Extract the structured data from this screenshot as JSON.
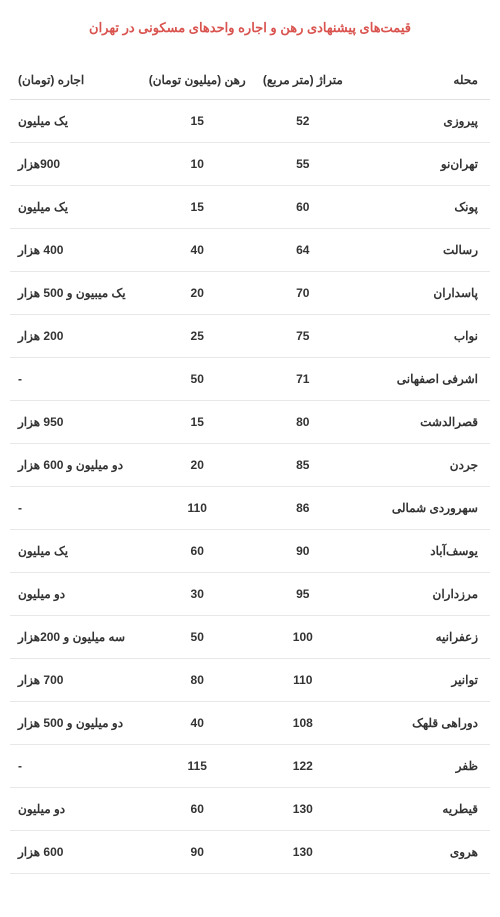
{
  "title": "قیمت‌های پیشنهادی رهن و اجاره واحدهای مسکونی در تهران",
  "columns": {
    "neighborhood": "محله",
    "area": "متراژ (متر مربع)",
    "deposit": "رهن (میلیون تومان)",
    "rent": "اجاره (تومان)"
  },
  "rows": [
    {
      "neighborhood": "پیروزی",
      "area": "52",
      "deposit": "15",
      "rent": "یک میلیون"
    },
    {
      "neighborhood": "تهران‌نو",
      "area": "55",
      "deposit": "10",
      "rent": "900هزار"
    },
    {
      "neighborhood": "پونک",
      "area": "60",
      "deposit": "15",
      "rent": "یک میلیون"
    },
    {
      "neighborhood": "رسالت",
      "area": "64",
      "deposit": "40",
      "rent": "400 هزار"
    },
    {
      "neighborhood": "پاسداران",
      "area": "70",
      "deposit": "20",
      "rent": "یک میبیون و 500 هزار"
    },
    {
      "neighborhood": "نواب",
      "area": "75",
      "deposit": "25",
      "rent": "200 هزار"
    },
    {
      "neighborhood": "اشرفی اصفهانی",
      "area": "71",
      "deposit": "50",
      "rent": "-"
    },
    {
      "neighborhood": "قصرالدشت",
      "area": "80",
      "deposit": "15",
      "rent": "950 هزار"
    },
    {
      "neighborhood": "جردن",
      "area": "85",
      "deposit": "20",
      "rent": "دو میلیون و 600 هزار"
    },
    {
      "neighborhood": "سهروردی شمالی",
      "area": "86",
      "deposit": "110",
      "rent": "-"
    },
    {
      "neighborhood": "یوسف‌آباد",
      "area": "90",
      "deposit": "60",
      "rent": "یک میلیون"
    },
    {
      "neighborhood": "مرزداران",
      "area": "95",
      "deposit": "30",
      "rent": "دو میلیون"
    },
    {
      "neighborhood": "زعفرانیه",
      "area": "100",
      "deposit": "50",
      "rent": "سه میلیون و 200هزار"
    },
    {
      "neighborhood": "توانیر",
      "area": "110",
      "deposit": "80",
      "rent": "700 هزار"
    },
    {
      "neighborhood": "دوراهی قلهک",
      "area": "108",
      "deposit": "40",
      "rent": "دو میلیون و 500 هزار"
    },
    {
      "neighborhood": "ظفر",
      "area": "122",
      "deposit": "115",
      "rent": "-"
    },
    {
      "neighborhood": "قیطریه",
      "area": "130",
      "deposit": "60",
      "rent": "دو میلیون"
    },
    {
      "neighborhood": "هروی",
      "area": "130",
      "deposit": "90",
      "rent": "600 هزار"
    }
  ],
  "styling": {
    "title_color": "#d9534f",
    "text_color": "#333333",
    "border_color": "#e8e8e8",
    "background": "#ffffff",
    "title_fontsize": 13,
    "cell_fontsize": 12
  }
}
